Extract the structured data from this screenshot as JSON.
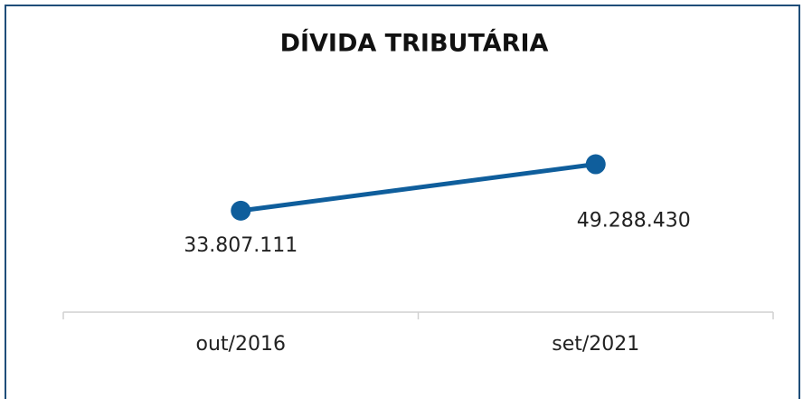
{
  "chart_data": {
    "type": "line",
    "title": "DÍVIDA TRIBUTÁRIA",
    "categories": [
      "out/2016",
      "set/2021"
    ],
    "series": [
      {
        "color": "#0f5e9c",
        "values": [
          33807111,
          49288430
        ],
        "value_labels": [
          "33.807.111",
          "49.288.430"
        ]
      }
    ],
    "ylim": [
      0,
      60000000
    ]
  }
}
